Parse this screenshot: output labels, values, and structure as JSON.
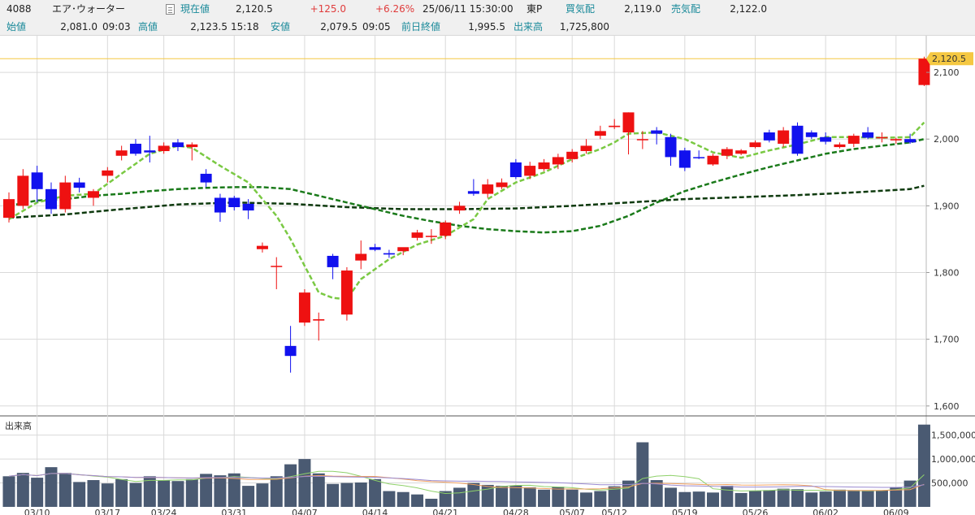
{
  "header": {
    "code": "4088",
    "name": "エア･ウォーター",
    "price_label": "現在値",
    "price": "2,120.5",
    "change": "+125.0",
    "change_pct": "+6.26%",
    "datetime": "25/06/11  15:30:00",
    "market": "東P",
    "bid_label": "買気配",
    "bid": "2,119.0",
    "ask_label": "売気配",
    "ask": "2,122.0",
    "open_label": "始値",
    "open": "2,081.0",
    "open_time": "09:03",
    "high_label": "高値",
    "high": "2,123.5",
    "high_time": "15:18",
    "low_label": "安値",
    "low": "2,079.5",
    "low_time": "09:05",
    "prev_close_label": "前日終値",
    "prev_close": "1,995.5",
    "volume_label": "出来高",
    "volume": "1,725,800"
  },
  "colors": {
    "up": "#ee1111",
    "down": "#1111ee",
    "ma_short": "#7ac943",
    "ma_mid": "#1a7a1a",
    "ma_long": "#0e3a0e",
    "price_line": "#f5c842",
    "price_tag": "#f5c842",
    "volume_bar": "#4a5a72",
    "grid": "#d9d9d9"
  },
  "chart_data": {
    "type": "candlestick",
    "price_tag": "2,120.5",
    "current_price": 2120.5,
    "ylim": [
      1590,
      2150
    ],
    "yticks": [
      1600,
      1700,
      1800,
      1900,
      2000,
      2100
    ],
    "ytick_labels": [
      "1,600",
      "1,700",
      "1,800",
      "1,900",
      "2,000",
      "2,100"
    ],
    "volume_label": "出来高",
    "volume_ylim": [
      0,
      1800000
    ],
    "volume_yticks": [
      500000,
      1000000,
      1500000
    ],
    "volume_ytick_labels": [
      "500,000",
      "1,000,000",
      "1,500,000"
    ],
    "xtick_labels": [
      {
        "i": 2,
        "label": "03/10"
      },
      {
        "i": 7,
        "label": "03/17"
      },
      {
        "i": 11,
        "label": "03/24"
      },
      {
        "i": 16,
        "label": "03/31"
      },
      {
        "i": 21,
        "label": "04/07"
      },
      {
        "i": 26,
        "label": "04/14"
      },
      {
        "i": 31,
        "label": "04/21"
      },
      {
        "i": 36,
        "label": "04/28"
      },
      {
        "i": 40,
        "label": "05/07"
      },
      {
        "i": 43,
        "label": "05/12"
      },
      {
        "i": 48,
        "label": "05/19"
      },
      {
        "i": 53,
        "label": "05/26"
      },
      {
        "i": 58,
        "label": "06/02"
      },
      {
        "i": 63,
        "label": "06/09"
      }
    ],
    "candles": [
      {
        "o": 1882,
        "h": 1920,
        "l": 1875,
        "c": 1910
      },
      {
        "o": 1900,
        "h": 1955,
        "l": 1895,
        "c": 1945
      },
      {
        "o": 1950,
        "h": 1960,
        "l": 1905,
        "c": 1925
      },
      {
        "o": 1925,
        "h": 1935,
        "l": 1888,
        "c": 1895
      },
      {
        "o": 1895,
        "h": 1945,
        "l": 1890,
        "c": 1935
      },
      {
        "o": 1935,
        "h": 1942,
        "l": 1920,
        "c": 1927
      },
      {
        "o": 1912,
        "h": 1925,
        "l": 1900,
        "c": 1922
      },
      {
        "o": 1945,
        "h": 1958,
        "l": 1935,
        "c": 1953
      },
      {
        "o": 1975,
        "h": 1990,
        "l": 1968,
        "c": 1983
      },
      {
        "o": 1993,
        "h": 2000,
        "l": 1975,
        "c": 1978
      },
      {
        "o": 1983,
        "h": 2005,
        "l": 1965,
        "c": 1980
      },
      {
        "o": 1982,
        "h": 1995,
        "l": 1978,
        "c": 1990
      },
      {
        "o": 1995,
        "h": 2000,
        "l": 1982,
        "c": 1988
      },
      {
        "o": 1988,
        "h": 1995,
        "l": 1968,
        "c": 1992
      },
      {
        "o": 1948,
        "h": 1955,
        "l": 1928,
        "c": 1935
      },
      {
        "o": 1912,
        "h": 1918,
        "l": 1876,
        "c": 1890
      },
      {
        "o": 1912,
        "h": 1915,
        "l": 1893,
        "c": 1898
      },
      {
        "o": 1903,
        "h": 1910,
        "l": 1880,
        "c": 1893
      },
      {
        "o": 1835,
        "h": 1845,
        "l": 1830,
        "c": 1840
      },
      {
        "o": 1810,
        "h": 1823,
        "l": 1775,
        "c": 1810
      },
      {
        "o": 1690,
        "h": 1720,
        "l": 1650,
        "c": 1675
      },
      {
        "o": 1725,
        "h": 1775,
        "l": 1720,
        "c": 1770
      },
      {
        "o": 1728,
        "h": 1740,
        "l": 1698,
        "c": 1730
      },
      {
        "o": 1825,
        "h": 1828,
        "l": 1790,
        "c": 1808
      },
      {
        "o": 1737,
        "h": 1808,
        "l": 1728,
        "c": 1803
      },
      {
        "o": 1818,
        "h": 1848,
        "l": 1805,
        "c": 1828
      },
      {
        "o": 1838,
        "h": 1843,
        "l": 1832,
        "c": 1834
      },
      {
        "o": 1829,
        "h": 1834,
        "l": 1822,
        "c": 1827
      },
      {
        "o": 1832,
        "h": 1836,
        "l": 1826,
        "c": 1838
      },
      {
        "o": 1852,
        "h": 1864,
        "l": 1848,
        "c": 1860
      },
      {
        "o": 1855,
        "h": 1865,
        "l": 1843,
        "c": 1855
      },
      {
        "o": 1855,
        "h": 1878,
        "l": 1850,
        "c": 1875
      },
      {
        "o": 1893,
        "h": 1906,
        "l": 1888,
        "c": 1900
      },
      {
        "o": 1922,
        "h": 1940,
        "l": 1915,
        "c": 1918
      },
      {
        "o": 1918,
        "h": 1940,
        "l": 1912,
        "c": 1932
      },
      {
        "o": 1928,
        "h": 1941,
        "l": 1925,
        "c": 1935
      },
      {
        "o": 1965,
        "h": 1970,
        "l": 1940,
        "c": 1943
      },
      {
        "o": 1945,
        "h": 1966,
        "l": 1940,
        "c": 1960
      },
      {
        "o": 1955,
        "h": 1970,
        "l": 1952,
        "c": 1965
      },
      {
        "o": 1962,
        "h": 1978,
        "l": 1955,
        "c": 1973
      },
      {
        "o": 1970,
        "h": 1985,
        "l": 1965,
        "c": 1981
      },
      {
        "o": 1982,
        "h": 2000,
        "l": 1978,
        "c": 1990
      },
      {
        "o": 2005,
        "h": 2020,
        "l": 2000,
        "c": 2012
      },
      {
        "o": 2018,
        "h": 2030,
        "l": 2015,
        "c": 2020
      },
      {
        "o": 2010,
        "h": 2040,
        "l": 1977,
        "c": 2040
      },
      {
        "o": 2000,
        "h": 2012,
        "l": 1985,
        "c": 2000
      },
      {
        "o": 2013,
        "h": 2018,
        "l": 1992,
        "c": 2008
      },
      {
        "o": 2003,
        "h": 2008,
        "l": 1960,
        "c": 1973
      },
      {
        "o": 1983,
        "h": 1987,
        "l": 1952,
        "c": 1957
      },
      {
        "o": 1973,
        "h": 1983,
        "l": 1970,
        "c": 1972
      },
      {
        "o": 1962,
        "h": 1978,
        "l": 1960,
        "c": 1975
      },
      {
        "o": 1975,
        "h": 1988,
        "l": 1970,
        "c": 1985
      },
      {
        "o": 1978,
        "h": 1985,
        "l": 1976,
        "c": 1983
      },
      {
        "o": 1988,
        "h": 1998,
        "l": 1986,
        "c": 1995
      },
      {
        "o": 2010,
        "h": 2014,
        "l": 1995,
        "c": 1998
      },
      {
        "o": 1993,
        "h": 2018,
        "l": 1988,
        "c": 2013
      },
      {
        "o": 2020,
        "h": 2025,
        "l": 1975,
        "c": 1978
      },
      {
        "o": 2010,
        "h": 2013,
        "l": 2000,
        "c": 2003
      },
      {
        "o": 2003,
        "h": 2010,
        "l": 1992,
        "c": 1996
      },
      {
        "o": 1988,
        "h": 1995,
        "l": 1986,
        "c": 1992
      },
      {
        "o": 1993,
        "h": 2008,
        "l": 1988,
        "c": 2005
      },
      {
        "o": 2010,
        "h": 2018,
        "l": 2000,
        "c": 2002
      },
      {
        "o": 2002,
        "h": 2010,
        "l": 1995,
        "c": 2003
      },
      {
        "o": 1998,
        "h": 2002,
        "l": 1993,
        "c": 2000
      },
      {
        "o": 2000,
        "h": 2008,
        "l": 1993,
        "c": 1995
      },
      {
        "o": 2081,
        "h": 2123.5,
        "l": 2079.5,
        "c": 2120.5
      }
    ],
    "ma_short": [
      [
        0,
        1880
      ],
      [
        2,
        1905
      ],
      [
        4,
        1915
      ],
      [
        6,
        1918
      ],
      [
        8,
        1948
      ],
      [
        10,
        1978
      ],
      [
        12,
        1990
      ],
      [
        13,
        1987
      ],
      [
        15,
        1960
      ],
      [
        17,
        1935
      ],
      [
        19,
        1885
      ],
      [
        20,
        1850
      ],
      [
        21,
        1810
      ],
      [
        22,
        1770
      ],
      [
        23,
        1762
      ],
      [
        24,
        1760
      ],
      [
        25,
        1790
      ],
      [
        27,
        1820
      ],
      [
        29,
        1842
      ],
      [
        31,
        1855
      ],
      [
        33,
        1880
      ],
      [
        34,
        1910
      ],
      [
        36,
        1935
      ],
      [
        38,
        1950
      ],
      [
        40,
        1970
      ],
      [
        42,
        1985
      ],
      [
        43,
        1995
      ],
      [
        44,
        2008
      ],
      [
        46,
        2010
      ],
      [
        48,
        2000
      ],
      [
        50,
        1980
      ],
      [
        52,
        1972
      ],
      [
        54,
        1983
      ],
      [
        56,
        1992
      ],
      [
        58,
        2003
      ],
      [
        60,
        2003
      ],
      [
        62,
        2002
      ],
      [
        64,
        2003
      ],
      [
        65,
        2025
      ]
    ],
    "ma_mid": [
      [
        0,
        1900
      ],
      [
        2,
        1908
      ],
      [
        4,
        1910
      ],
      [
        6,
        1915
      ],
      [
        8,
        1918
      ],
      [
        10,
        1922
      ],
      [
        12,
        1925
      ],
      [
        14,
        1927
      ],
      [
        16,
        1928
      ],
      [
        18,
        1928
      ],
      [
        20,
        1925
      ],
      [
        22,
        1915
      ],
      [
        24,
        1905
      ],
      [
        26,
        1895
      ],
      [
        28,
        1885
      ],
      [
        30,
        1877
      ],
      [
        32,
        1870
      ],
      [
        34,
        1865
      ],
      [
        36,
        1862
      ],
      [
        38,
        1860
      ],
      [
        40,
        1862
      ],
      [
        42,
        1870
      ],
      [
        44,
        1885
      ],
      [
        46,
        1905
      ],
      [
        48,
        1922
      ],
      [
        50,
        1935
      ],
      [
        52,
        1947
      ],
      [
        54,
        1958
      ],
      [
        56,
        1968
      ],
      [
        58,
        1978
      ],
      [
        60,
        1985
      ],
      [
        62,
        1990
      ],
      [
        64,
        1995
      ],
      [
        65,
        2000
      ]
    ],
    "ma_long": [
      [
        0,
        1882
      ],
      [
        4,
        1887
      ],
      [
        8,
        1895
      ],
      [
        12,
        1902
      ],
      [
        16,
        1905
      ],
      [
        20,
        1903
      ],
      [
        24,
        1898
      ],
      [
        28,
        1895
      ],
      [
        32,
        1895
      ],
      [
        36,
        1896
      ],
      [
        40,
        1900
      ],
      [
        44,
        1905
      ],
      [
        48,
        1910
      ],
      [
        52,
        1913
      ],
      [
        56,
        1916
      ],
      [
        60,
        1920
      ],
      [
        64,
        1925
      ],
      [
        65,
        1930
      ]
    ],
    "volumes": [
      640000,
      710000,
      610000,
      830000,
      710000,
      520000,
      560000,
      490000,
      580000,
      500000,
      640000,
      560000,
      540000,
      580000,
      690000,
      660000,
      700000,
      440000,
      490000,
      640000,
      890000,
      1000000,
      700000,
      480000,
      500000,
      510000,
      580000,
      330000,
      310000,
      260000,
      170000,
      330000,
      400000,
      500000,
      460000,
      440000,
      450000,
      410000,
      360000,
      420000,
      360000,
      300000,
      330000,
      430000,
      550000,
      1350000,
      560000,
      400000,
      310000,
      320000,
      300000,
      440000,
      290000,
      340000,
      350000,
      380000,
      370000,
      300000,
      320000,
      360000,
      350000,
      340000,
      340000,
      410000,
      550000,
      1720000
    ]
  }
}
